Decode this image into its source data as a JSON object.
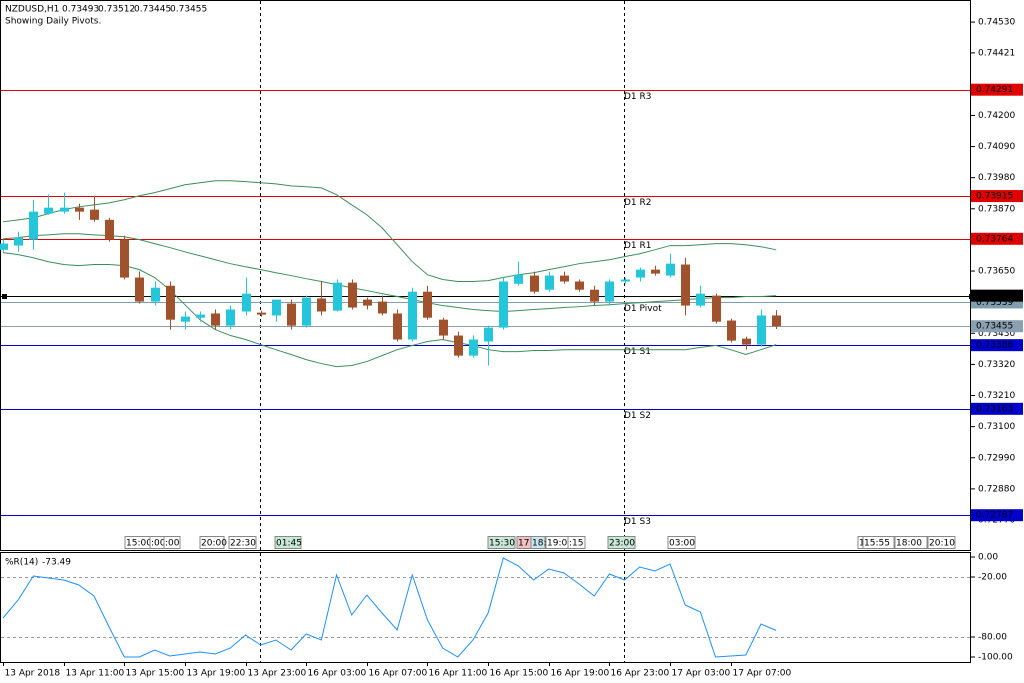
{
  "chart_data": [
    {
      "type": "candlestick",
      "symbol": "NZDUSD,H1",
      "subtitle": "Showing Daily Pivots.",
      "up_color": "#26c6da",
      "down_color": "#a0522d",
      "categories": [
        "13 Apr 2018",
        null,
        null,
        null,
        "13 Apr 11:00",
        null,
        null,
        null,
        "13 Apr 15:00",
        null,
        null,
        null,
        "13 Apr 19:00",
        null,
        null,
        null,
        "13 Apr 23:00",
        null,
        null,
        null,
        "16 Apr 03:00",
        null,
        null,
        null,
        "16 Apr 07:00",
        null,
        null,
        null,
        "16 Apr 11:00",
        null,
        null,
        null,
        "16 Apr 15:00",
        null,
        null,
        null,
        "16 Apr 19:00",
        null,
        null,
        null,
        "16 Apr 23:00",
        null,
        null,
        null,
        "17 Apr 03:00",
        null,
        null,
        null,
        "17 Apr 07:00",
        null,
        null,
        null
      ],
      "open": [
        0.73725,
        0.7374,
        0.73761,
        0.73853,
        0.7386,
        0.73874,
        0.73867,
        0.73831,
        0.73761,
        0.73627,
        0.73542,
        0.73598,
        0.73471,
        0.73485,
        0.735,
        0.73457,
        0.73507,
        0.73503,
        0.73493,
        0.73535,
        0.73457,
        0.73553,
        0.7351,
        0.73609,
        0.73549,
        0.73542,
        0.735,
        0.73408,
        0.73577,
        0.73478,
        0.73422,
        0.73351,
        0.73401,
        0.7345,
        0.73605,
        0.73634,
        0.73584,
        0.73634,
        0.73613,
        0.73584,
        0.73542,
        0.73613,
        0.73627,
        0.73655,
        0.73634,
        0.73673,
        0.73528,
        0.73563,
        0.73475,
        0.73411,
        0.7339,
        0.73493
      ],
      "high": [
        0.73761,
        0.73789,
        0.73902,
        0.7392,
        0.73927,
        0.73888,
        0.73916,
        0.73838,
        0.73775,
        0.73648,
        0.73613,
        0.73613,
        0.73507,
        0.73507,
        0.73514,
        0.73528,
        0.73627,
        0.7351,
        0.73549,
        0.73549,
        0.73563,
        0.73613,
        0.7362,
        0.7362,
        0.73556,
        0.73563,
        0.73514,
        0.73591,
        0.73598,
        0.73485,
        0.73436,
        0.73422,
        0.73457,
        0.73627,
        0.73683,
        0.73648,
        0.73648,
        0.73648,
        0.7362,
        0.73598,
        0.7362,
        0.73627,
        0.73662,
        0.73669,
        0.73711,
        0.73697,
        0.73598,
        0.7357,
        0.73482,
        0.73418,
        0.73514,
        0.73512
      ],
      "low": [
        0.73718,
        0.73718,
        0.73725,
        0.73849,
        0.73853,
        0.73831,
        0.73824,
        0.73754,
        0.7362,
        0.73535,
        0.73528,
        0.73443,
        0.73443,
        0.73471,
        0.73443,
        0.73443,
        0.73493,
        0.73489,
        0.73471,
        0.73443,
        0.7345,
        0.73493,
        0.73507,
        0.73514,
        0.73514,
        0.73493,
        0.73401,
        0.73401,
        0.73478,
        0.73408,
        0.73344,
        0.73344,
        0.73316,
        0.73443,
        0.73598,
        0.7357,
        0.73577,
        0.73605,
        0.73577,
        0.73528,
        0.73528,
        0.73605,
        0.73613,
        0.73634,
        0.73627,
        0.73493,
        0.73521,
        0.73464,
        0.73397,
        0.73372,
        0.73383,
        0.73445
      ],
      "close": [
        0.73747,
        0.73768,
        0.7386,
        0.73874,
        0.73874,
        0.7386,
        0.73831,
        0.73761,
        0.73627,
        0.73542,
        0.73591,
        0.73478,
        0.73489,
        0.73496,
        0.73457,
        0.73514,
        0.7357,
        0.73496,
        0.73549,
        0.73457,
        0.73556,
        0.73507,
        0.73609,
        0.73521,
        0.73528,
        0.735,
        0.73408,
        0.73577,
        0.73485,
        0.73422,
        0.73351,
        0.73408,
        0.7345,
        0.73613,
        0.73637,
        0.73577,
        0.73634,
        0.73613,
        0.73584,
        0.73542,
        0.73613,
        0.7362,
        0.73655,
        0.73641,
        0.73676,
        0.73528,
        0.7357,
        0.73471,
        0.73404,
        0.7339,
        0.73493,
        0.73455
      ],
      "bands": {
        "color": "#3c8f5a",
        "upper": [
          0.73824,
          0.73831,
          0.73838,
          0.73853,
          0.73867,
          0.73877,
          0.73884,
          0.73891,
          0.73902,
          0.73916,
          0.73927,
          0.73941,
          0.73955,
          0.73962,
          0.73969,
          0.73969,
          0.73966,
          0.73962,
          0.73958,
          0.73951,
          0.73948,
          0.73944,
          0.7392,
          0.73884,
          0.73849,
          0.73803,
          0.73743,
          0.73683,
          0.73637,
          0.7362,
          0.73613,
          0.73613,
          0.73616,
          0.73627,
          0.73637,
          0.73644,
          0.73655,
          0.73665,
          0.73676,
          0.73683,
          0.7369,
          0.73701,
          0.73711,
          0.73725,
          0.7374,
          0.7374,
          0.73743,
          0.73747,
          0.73747,
          0.73743,
          0.73736,
          0.73725
        ],
        "middle": [
          0.73764,
          0.73768,
          0.73775,
          0.73778,
          0.73782,
          0.73782,
          0.73778,
          0.73775,
          0.73771,
          0.73761,
          0.73747,
          0.73733,
          0.73718,
          0.73704,
          0.7369,
          0.73676,
          0.73665,
          0.73655,
          0.73644,
          0.73634,
          0.73623,
          0.73613,
          0.73602,
          0.73591,
          0.73581,
          0.7357,
          0.7356,
          0.73549,
          0.73538,
          0.73528,
          0.73521,
          0.73514,
          0.7351,
          0.73507,
          0.7351,
          0.73514,
          0.73517,
          0.73521,
          0.73524,
          0.73528,
          0.73531,
          0.73535,
          0.73538,
          0.73542,
          0.73545,
          0.73549,
          0.73553,
          0.73556,
          0.73556,
          0.7356,
          0.7356,
          0.73563
        ],
        "lower": [
          0.73715,
          0.73708,
          0.73697,
          0.73683,
          0.73673,
          0.73669,
          0.73673,
          0.73673,
          0.73669,
          0.73655,
          0.73627,
          0.73584,
          0.73531,
          0.73478,
          0.73443,
          0.73422,
          0.73408,
          0.7339,
          0.73372,
          0.73355,
          0.73337,
          0.73323,
          0.73312,
          0.73316,
          0.7333,
          0.73351,
          0.73372,
          0.73387,
          0.73401,
          0.73408,
          0.73397,
          0.73387,
          0.73372,
          0.73365,
          0.73365,
          0.73369,
          0.73369,
          0.73372,
          0.73372,
          0.73372,
          0.73372,
          0.73372,
          0.73372,
          0.73372,
          0.73372,
          0.73372,
          0.7338,
          0.73387,
          0.73372,
          0.73355,
          0.73372,
          0.7339
        ]
      },
      "levels": [
        {
          "name": "D1 R3",
          "value": 0.74291,
          "color": "#e00000"
        },
        {
          "name": "D1 R2",
          "value": 0.73915,
          "color": "#e00000"
        },
        {
          "name": "D1 R1",
          "value": 0.73764,
          "color": "#e00000"
        },
        {
          "name": "D1 Pivot",
          "value": 0.73539,
          "color": "#7f9fb0"
        },
        {
          "name": "D1 S1",
          "value": 0.73388,
          "color": "#0000cc"
        },
        {
          "name": "D1 S2",
          "value": 0.73163,
          "color": "#0000cc"
        },
        {
          "name": "D1 S3",
          "value": 0.72787,
          "color": "#0000cc"
        }
      ],
      "price_lines": [
        {
          "value": 0.73563,
          "color": "#000000"
        },
        {
          "value": 0.73455,
          "color": "#8a9fb0"
        }
      ],
      "time_marks": [
        "15:00",
        ":00",
        ":00",
        "20:00",
        "22:30",
        "01:45",
        "15:30",
        "17:",
        "18:",
        "19:00",
        ":15",
        "23:00",
        "03:00",
        "1",
        "15:55",
        "18:00",
        "20:10"
      ],
      "ylim": [
        0.72664,
        0.74608
      ],
      "yticks": [
        {
          "value": 0.7453,
          "label": "0.74530"
        },
        {
          "value": 0.74421,
          "label": "0.74421"
        },
        {
          "value": 0.742,
          "label": "0.74200"
        },
        {
          "value": 0.7409,
          "label": "0.74090"
        },
        {
          "value": 0.7398,
          "label": "0.73980"
        },
        {
          "value": 0.7387,
          "label": "0.73870"
        },
        {
          "value": 0.7365,
          "label": "0.73650"
        },
        {
          "value": 0.7343,
          "label": "0.73430"
        },
        {
          "value": 0.7332,
          "label": "0.73320"
        },
        {
          "value": 0.7321,
          "label": "0.73210"
        },
        {
          "value": 0.731,
          "label": "0.73100"
        },
        {
          "value": 0.7299,
          "label": "0.72990"
        },
        {
          "value": 0.7288,
          "label": "0.72880"
        },
        {
          "value": 0.7277,
          "label": "0.72770"
        }
      ]
    },
    {
      "type": "line",
      "title": "%R(14)",
      "color": "#1e90ff",
      "values": [
        -61,
        -43,
        -19,
        -21,
        -23,
        -28,
        -39,
        -70,
        -100,
        -100,
        -93,
        -99,
        -97,
        -95,
        -97,
        -91,
        -78,
        -88,
        -83,
        -93,
        -77,
        -83,
        -18,
        -58,
        -38,
        -56,
        -73,
        -18,
        -63,
        -91,
        -100,
        -83,
        -56,
        -1,
        -9,
        -23,
        -12,
        -16,
        -27,
        -39,
        -17,
        -23,
        -10,
        -14,
        -7,
        -48,
        -55,
        -100,
        -99,
        -98,
        -67,
        -73.49
      ],
      "levels": [
        -20,
        -80
      ],
      "ylim": [
        -105,
        5
      ],
      "yticks": [
        {
          "value": 0,
          "label": "0.00"
        },
        {
          "value": -20,
          "label": "-20.00"
        },
        {
          "value": -80,
          "label": "-80.00"
        },
        {
          "value": -100,
          "label": "-100.00"
        }
      ]
    }
  ]
}
